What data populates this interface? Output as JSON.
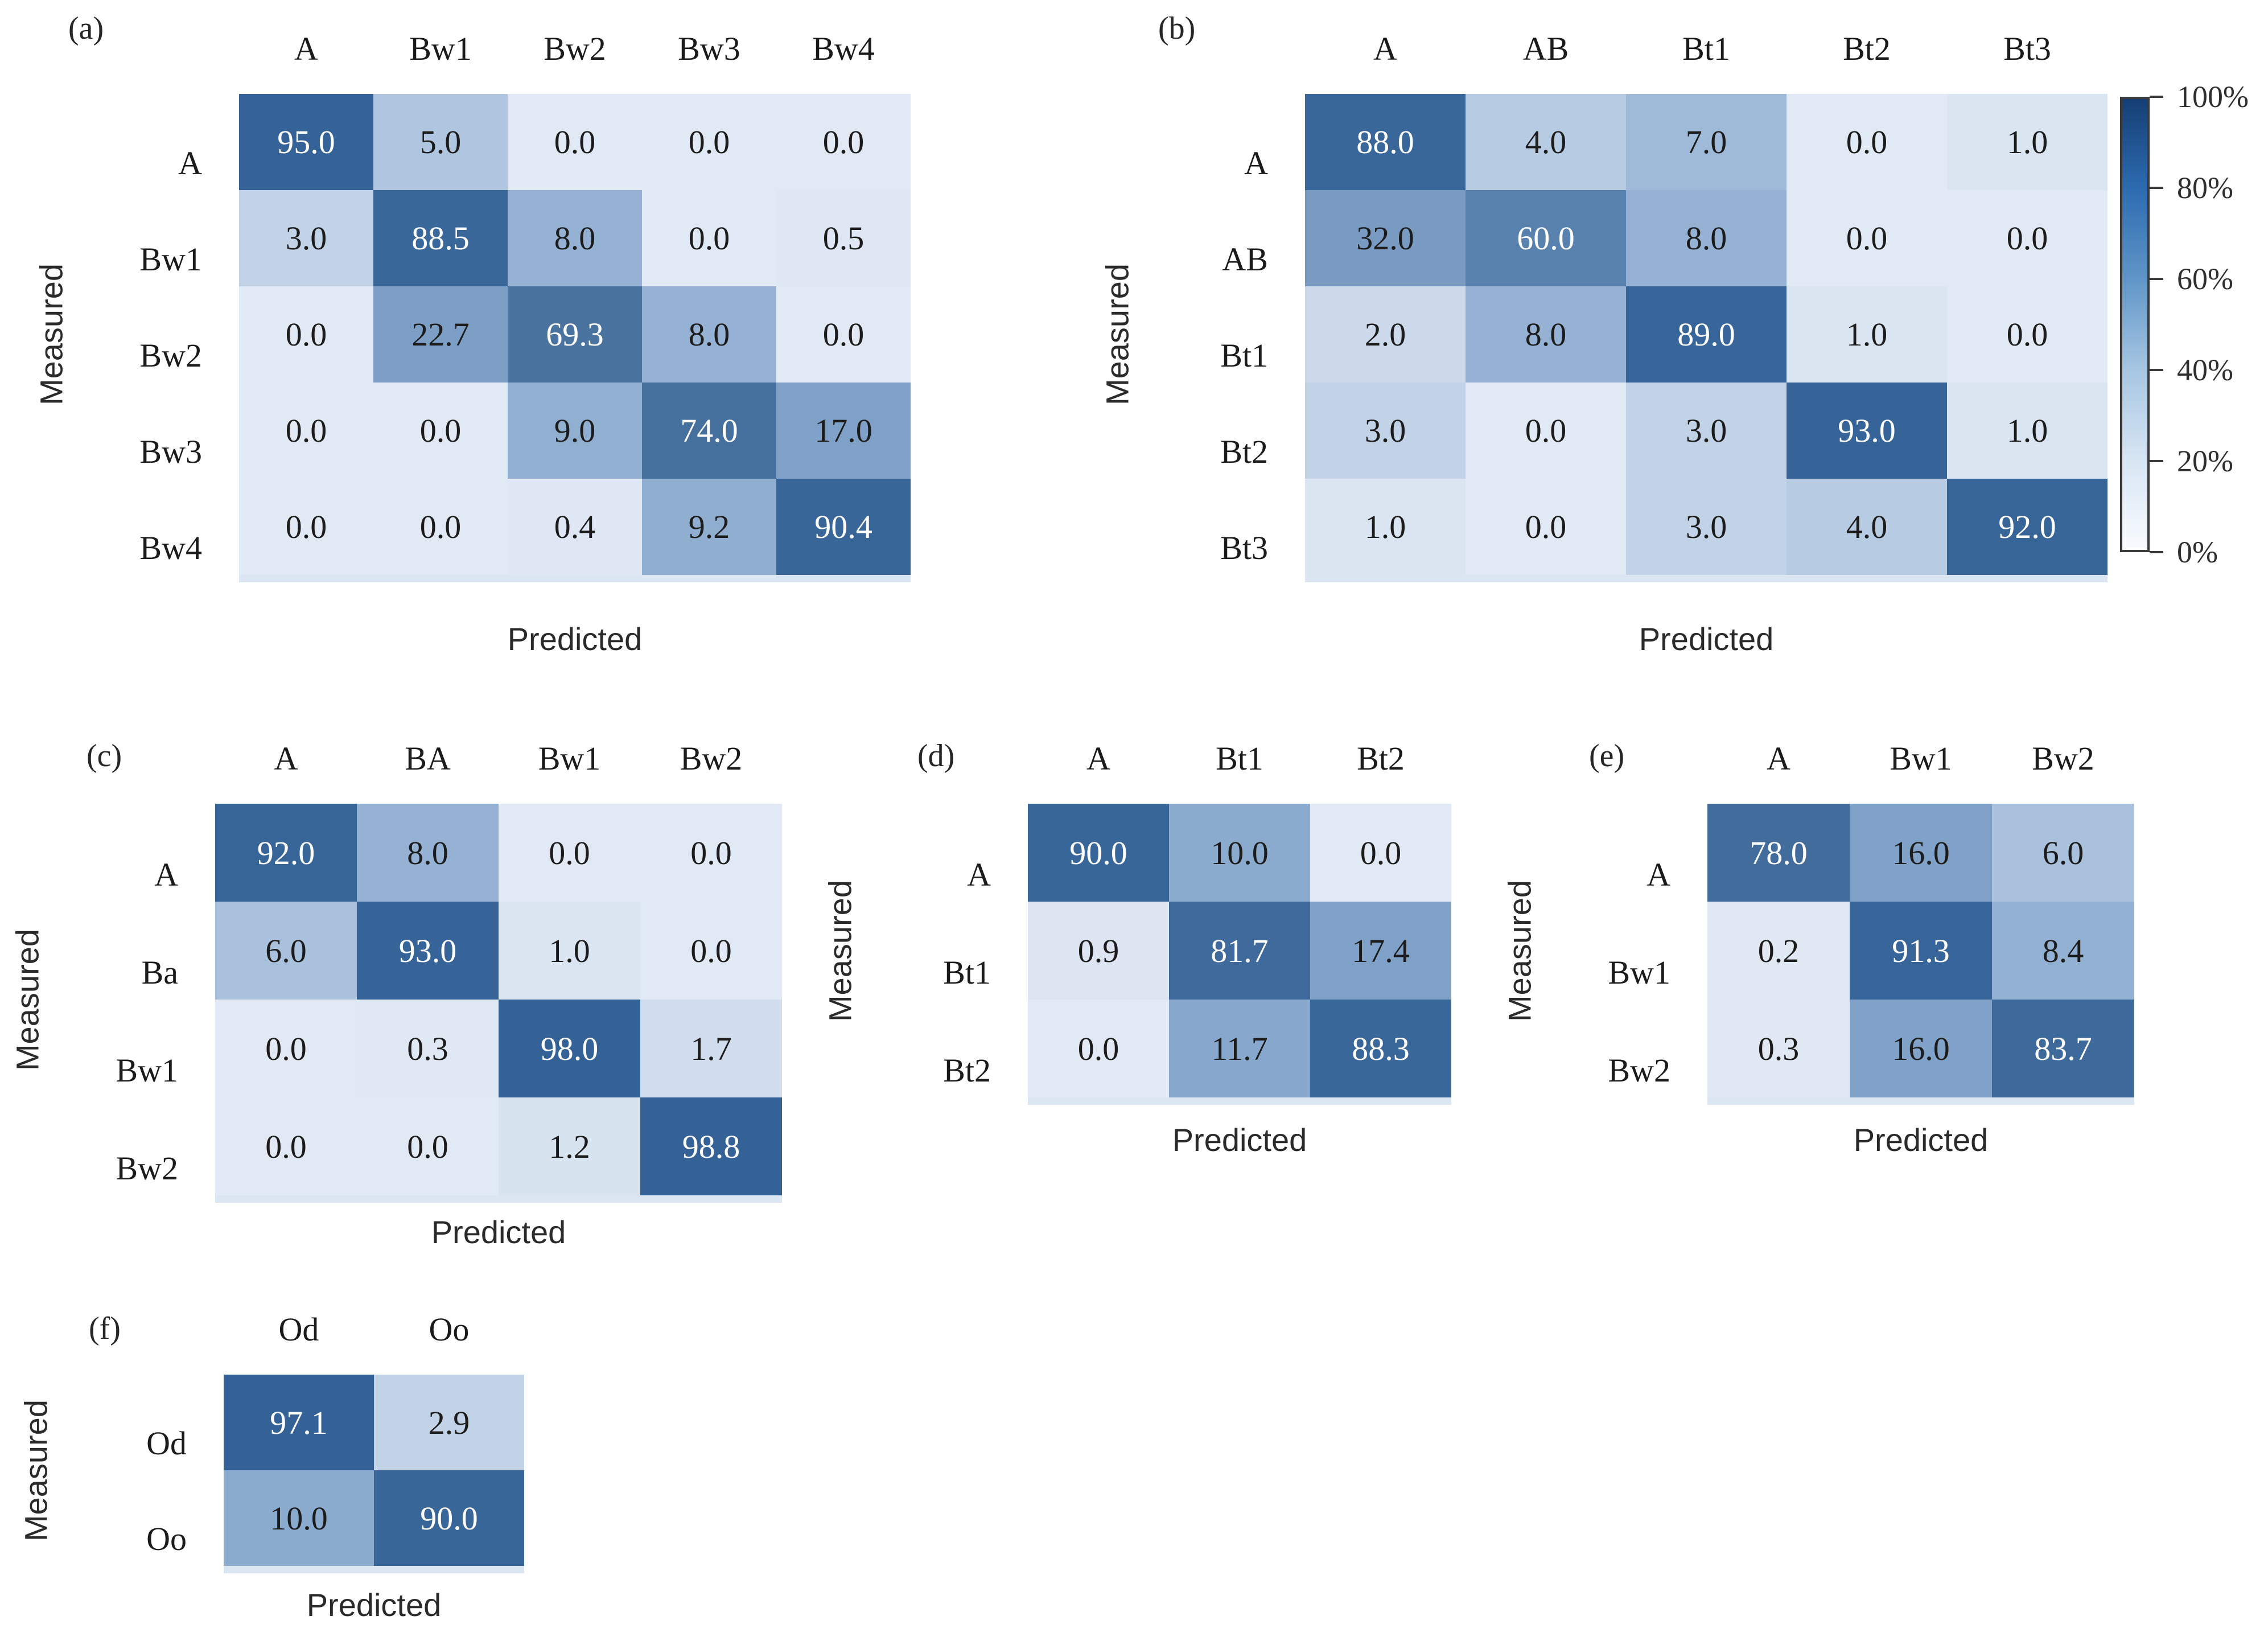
{
  "figure": {
    "background": "#ffffff"
  },
  "chart_data": [
    {
      "type": "heatmap",
      "panel_label": "(a)",
      "xlabel": "Predicted",
      "ylabel": "Measured",
      "unit": "%",
      "vmin": 0,
      "vmax": 100,
      "x_categories": [
        "A",
        "Bw1",
        "Bw2",
        "Bw3",
        "Bw4"
      ],
      "y_categories": [
        "A",
        "Bw1",
        "Bw2",
        "Bw3",
        "Bw4"
      ],
      "values": [
        [
          95.0,
          5.0,
          0.0,
          0.0,
          0.0
        ],
        [
          3.0,
          88.5,
          8.0,
          0.0,
          0.5
        ],
        [
          0.0,
          22.7,
          69.3,
          8.0,
          0.0
        ],
        [
          0.0,
          0.0,
          9.0,
          74.0,
          17.0
        ],
        [
          0.0,
          0.0,
          0.4,
          9.2,
          90.4
        ]
      ]
    },
    {
      "type": "heatmap",
      "panel_label": "(b)",
      "xlabel": "Predicted",
      "ylabel": "Measured",
      "unit": "%",
      "vmin": 0,
      "vmax": 100,
      "x_categories": [
        "A",
        "AB",
        "Bt1",
        "Bt2",
        "Bt3"
      ],
      "y_categories": [
        "A",
        "AB",
        "Bt1",
        "Bt2",
        "Bt3"
      ],
      "values": [
        [
          88.0,
          4.0,
          7.0,
          0.0,
          1.0
        ],
        [
          32.0,
          60.0,
          8.0,
          0.0,
          0.0
        ],
        [
          2.0,
          8.0,
          89.0,
          1.0,
          0.0
        ],
        [
          3.0,
          0.0,
          3.0,
          93.0,
          1.0
        ],
        [
          1.0,
          0.0,
          3.0,
          4.0,
          92.0
        ]
      ]
    },
    {
      "type": "heatmap",
      "panel_label": "(c)",
      "xlabel": "Predicted",
      "ylabel": "Measured",
      "unit": "%",
      "vmin": 0,
      "vmax": 100,
      "x_categories": [
        "A",
        "BA",
        "Bw1",
        "Bw2"
      ],
      "y_categories": [
        "A",
        "Ba",
        "Bw1",
        "Bw2"
      ],
      "values": [
        [
          92.0,
          8.0,
          0.0,
          0.0
        ],
        [
          6.0,
          93.0,
          1.0,
          0.0
        ],
        [
          0.0,
          0.3,
          98.0,
          1.7
        ],
        [
          0.0,
          0.0,
          1.2,
          98.8
        ]
      ]
    },
    {
      "type": "heatmap",
      "panel_label": "(d)",
      "xlabel": "Predicted",
      "ylabel": "Measured",
      "unit": "%",
      "vmin": 0,
      "vmax": 100,
      "x_categories": [
        "A",
        "Bt1",
        "Bt2"
      ],
      "y_categories": [
        "A",
        "Bt1",
        "Bt2"
      ],
      "values": [
        [
          90.0,
          10.0,
          0.0
        ],
        [
          0.9,
          81.7,
          17.4
        ],
        [
          0.0,
          11.7,
          88.3
        ]
      ]
    },
    {
      "type": "heatmap",
      "panel_label": "(e)",
      "xlabel": "Predicted",
      "ylabel": "Measured",
      "unit": "%",
      "vmin": 0,
      "vmax": 100,
      "x_categories": [
        "A",
        "Bw1",
        "Bw2"
      ],
      "y_categories": [
        "A",
        "Bw1",
        "Bw2"
      ],
      "values": [
        [
          78.0,
          16.0,
          6.0
        ],
        [
          0.2,
          91.3,
          8.4
        ],
        [
          0.3,
          16.0,
          83.7
        ]
      ]
    },
    {
      "type": "heatmap",
      "panel_label": "(f)",
      "xlabel": "Predicted",
      "ylabel": "Measured",
      "unit": "%",
      "vmin": 0,
      "vmax": 100,
      "x_categories": [
        "Od",
        "Oo"
      ],
      "y_categories": [
        "Od",
        "Oo"
      ],
      "values": [
        [
          97.1,
          2.9
        ],
        [
          10.0,
          90.0
        ]
      ]
    }
  ],
  "colorbar": {
    "labels": [
      "100%",
      "80%",
      "60%",
      "40%",
      "20%",
      "0%"
    ],
    "gradient_top_to_bottom": [
      "#153f74",
      "#2d6bb0",
      "#6096c8",
      "#a6c6e2",
      "#d7e5f3",
      "#f8fbfe"
    ],
    "border_color": "#3a3a3a"
  },
  "style": {
    "decimals": 1,
    "cell_text_dark": "#1c1c1c",
    "cell_text_light": "#ffffff",
    "white_text_min": 50,
    "value_color_stops": [
      [
        0,
        "#e0e9f4"
      ],
      [
        1,
        "#dbe5f1"
      ],
      [
        2,
        "#ccd9ea"
      ],
      [
        4,
        "#b7cbe3"
      ],
      [
        6,
        "#a9c1dd"
      ],
      [
        8,
        "#95b2d4"
      ],
      [
        10,
        "#8babce"
      ],
      [
        13,
        "#84a5ca"
      ],
      [
        18,
        "#7ea0c7"
      ],
      [
        25,
        "#7c9ec5"
      ],
      [
        35,
        "#7899c1"
      ],
      [
        50,
        "#6389b4"
      ],
      [
        60,
        "#5981ad"
      ],
      [
        70,
        "#49729f"
      ],
      [
        80,
        "#406b9b"
      ],
      [
        88,
        "#3a679a"
      ],
      [
        100,
        "#336095"
      ]
    ]
  }
}
